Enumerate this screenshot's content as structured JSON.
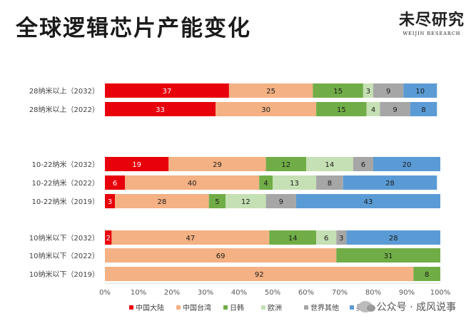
{
  "page": {
    "title": "全球逻辑芯片产能变化",
    "brand_name": "未尽研究",
    "brand_sub": "WEIJIN RESEARCH",
    "watermark": "公众号 · 成风说事"
  },
  "chart_data": {
    "type": "bar",
    "orientation": "horizontal",
    "stacked": "percent",
    "categories": [
      "28纳米以上（2032）",
      "28纳米以上（2022）",
      "10-22纳米（2032）",
      "10-22纳米（2022）",
      "10-22纳米（2019）",
      "10纳米以下（2032）",
      "10纳米以下（2022）",
      "10纳米以下（2019）"
    ],
    "series": [
      {
        "name": "中国大陆",
        "color": "#e8000b",
        "values": [
          37,
          33,
          19,
          6,
          3,
          2,
          0,
          0
        ]
      },
      {
        "name": "中国台湾",
        "color": "#f4b183",
        "values": [
          25,
          30,
          29,
          40,
          28,
          47,
          69,
          92
        ]
      },
      {
        "name": "日韩",
        "color": "#70ad47",
        "values": [
          15,
          15,
          12,
          4,
          5,
          14,
          31,
          8
        ]
      },
      {
        "name": "欧洲",
        "color": "#c5e0b4",
        "values": [
          3,
          4,
          14,
          13,
          12,
          6,
          0,
          0
        ]
      },
      {
        "name": "世界其他",
        "color": "#a6a6a6",
        "values": [
          9,
          9,
          6,
          8,
          9,
          3,
          0,
          0
        ]
      },
      {
        "name": "美国",
        "color": "#5b9bd5",
        "values": [
          10,
          8,
          20,
          28,
          43,
          28,
          0,
          0
        ]
      }
    ],
    "x_ticks": [
      "0%",
      "10%",
      "20%",
      "30%",
      "40%",
      "50%",
      "60%",
      "70%",
      "80%",
      "90%",
      "100%"
    ],
    "xlim": [
      0,
      100
    ],
    "grid": false,
    "legend_position": "bottom"
  }
}
